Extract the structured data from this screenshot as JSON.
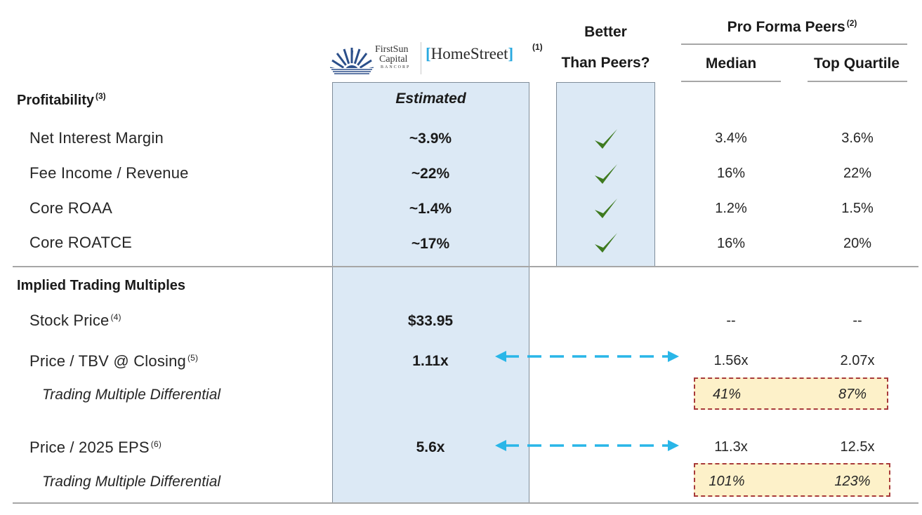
{
  "logos": {
    "firstsun": {
      "line1": "FirstSun",
      "line2": "Capital",
      "line3": "BANCORP"
    },
    "homestreet": {
      "text_home": "Home",
      "text_street": "Street",
      "footnote": "(1)"
    }
  },
  "headers": {
    "better_line1": "Better",
    "better_line2": "Than Peers?",
    "pro_forma": "Pro Forma Peers",
    "pro_forma_note": "(2)",
    "median": "Median",
    "top_quartile": "Top Quartile"
  },
  "profitability": {
    "title": "Profitability",
    "title_note": "(3)",
    "estimated": "Estimated",
    "rows": [
      {
        "label": "Net Interest Margin",
        "value": "~3.9%",
        "median": "3.4%",
        "top": "3.6%"
      },
      {
        "label": "Fee Income / Revenue",
        "value": "~22%",
        "median": "16%",
        "top": "22%"
      },
      {
        "label": "Core ROAA",
        "value": "~1.4%",
        "median": "1.2%",
        "top": "1.5%"
      },
      {
        "label": "Core ROATCE",
        "value": "~17%",
        "median": "16%",
        "top": "20%"
      }
    ]
  },
  "multiples": {
    "title": "Implied Trading Multiples",
    "stock": {
      "label": "Stock Price",
      "note": "(4)",
      "value": "$33.95",
      "median": "--",
      "top": "--"
    },
    "tbv": {
      "label": "Price / TBV @ Closing",
      "note": "(5)",
      "value": "1.11x",
      "median": "1.56x",
      "top": "2.07x"
    },
    "tbv_diff": {
      "label": "Trading Multiple Differential",
      "median": "41%",
      "top": "87%"
    },
    "eps": {
      "label": "Price / 2025 EPS",
      "note": "(6)",
      "value": "5.6x",
      "median": "11.3x",
      "top": "12.5x"
    },
    "eps_diff": {
      "label": "Trading Multiple Differential",
      "median": "101%",
      "top": "123%"
    }
  },
  "colors": {
    "highlight_col": "#dce9f5",
    "check": "#3e7a1f",
    "arrow": "#29b6e8",
    "diff_fill": "#fdf1c9",
    "diff_border": "#a83a3a"
  }
}
